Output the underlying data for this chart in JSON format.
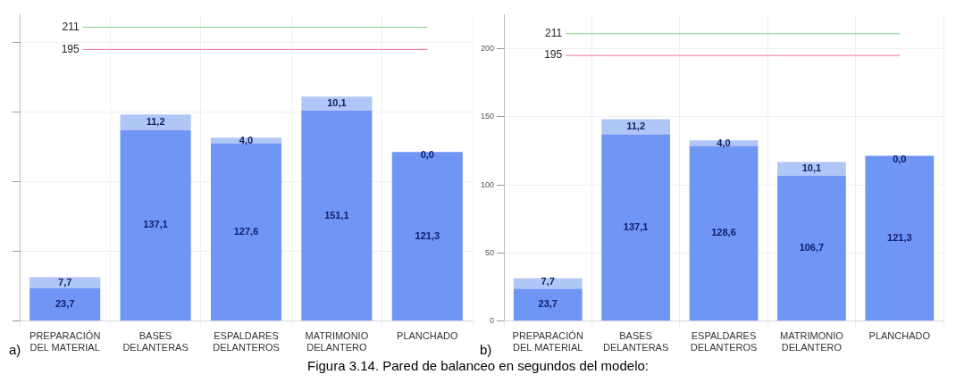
{
  "chart_data": [
    {
      "type": "bar",
      "stacked": true,
      "categories": [
        "PREPARACIÓN\nDEL MATERIAL",
        "BASES\nDELANTERAS",
        "ESPALDARES\nDELANTEROS",
        "MATRIMONIO\nDELANTERO",
        "PLANCHADO"
      ],
      "series": [
        {
          "color": "#6f95f5",
          "values": [
            23.7,
            137.1,
            127.6,
            151.1,
            121.3
          ]
        },
        {
          "color": "#b0c6f6",
          "values": [
            7.7,
            11.2,
            4.0,
            10.1,
            0.0
          ]
        }
      ],
      "value_labels": [
        [
          "23,7",
          "137,1",
          "127,6",
          "151,1",
          "121,3"
        ],
        [
          "7,7",
          "11,2",
          "4,0",
          "10,1",
          "0,0"
        ]
      ],
      "ylim": [
        0,
        220
      ],
      "yticks": [
        {
          "value": 0,
          "label": null
        },
        {
          "value": 50,
          "label": null
        },
        {
          "value": 100,
          "label": null
        },
        {
          "value": 150,
          "label": null
        },
        {
          "value": 200,
          "label": null
        }
      ],
      "tick_labels": "x",
      "grid": true,
      "ref_lines": [
        {
          "axis": "y",
          "value": 211,
          "label": "211",
          "color": "#7fcf7f"
        },
        {
          "axis": "y",
          "value": 195,
          "label": "195",
          "color": "#f07090"
        }
      ],
      "annotations": [
        "a)"
      ]
    },
    {
      "type": "bar",
      "stacked": true,
      "categories": [
        "PREPARACIÓN\nDEL MATERIAL",
        "BASES\nDELANTERAS",
        "ESPALDARES\nDELANTEROS",
        "MATRIMONIO\nDELANTERO",
        "PLANCHADO"
      ],
      "series": [
        {
          "color": "#6f95f5",
          "values": [
            23.7,
            137.1,
            128.6,
            106.7,
            121.3
          ]
        },
        {
          "color": "#b0c6f6",
          "values": [
            7.7,
            11.2,
            4.0,
            10.1,
            0.0
          ]
        }
      ],
      "value_labels": [
        [
          "23,7",
          "137,1",
          "128,6",
          "106,7",
          "121,3"
        ],
        [
          "7,7",
          "11,2",
          "4,0",
          "10,1",
          "0,0"
        ]
      ],
      "ylim": [
        0,
        225
      ],
      "yticks": [
        0,
        50,
        100,
        150,
        200
      ],
      "grid": true,
      "ref_lines": [
        {
          "axis": "y",
          "value": 211,
          "label": "211",
          "color": "#7fcf7f"
        },
        {
          "axis": "y",
          "value": 195,
          "label": "195",
          "color": "#f07090"
        }
      ],
      "annotations": [
        "b)",
        "Figura 3.14. Pared de balanceo en segundos del modelo:"
      ]
    }
  ]
}
